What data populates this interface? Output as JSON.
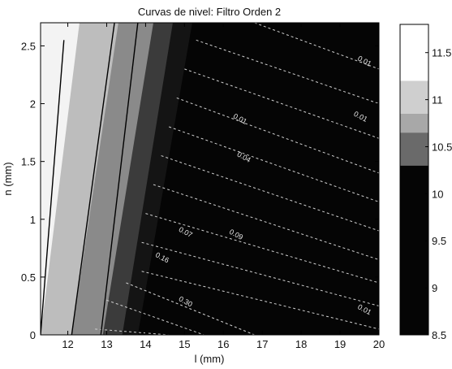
{
  "chart_data": {
    "type": "contour",
    "title": "Curvas de nivel: Filtro Orden 2",
    "xlabel": "l (mm)",
    "ylabel": "n (mm)",
    "xlim": [
      11.3,
      20
    ],
    "ylim": [
      0,
      2.7
    ],
    "x_ticks": [
      12,
      13,
      14,
      15,
      16,
      17,
      18,
      19,
      20
    ],
    "x_tick_labels": [
      "12",
      "13",
      "14",
      "15",
      "16",
      "17",
      "18",
      "19",
      "20"
    ],
    "y_ticks": [
      0,
      0.5,
      1,
      1.5,
      2,
      2.5
    ],
    "y_tick_labels": [
      "0",
      "0.5",
      "1",
      "1.5",
      "2",
      "2.5"
    ],
    "colorbar": {
      "range": [
        8.5,
        11.8
      ],
      "ticks": [
        8.5,
        9,
        9.5,
        10,
        10.5,
        11,
        11.5
      ],
      "tick_labels": [
        "8.5",
        "9",
        "9.5",
        "10",
        "10.5",
        "11",
        "11.5"
      ]
    },
    "bands": [
      {
        "boundary_bottom_x": 11.3,
        "boundary_top_x": 12.3,
        "level": 11.6,
        "color": "#f3f3f3"
      },
      {
        "boundary_bottom_x": 12.1,
        "boundary_top_x": 13.3,
        "level": 11.0,
        "color": "#bdbdbd"
      },
      {
        "boundary_bottom_x": 12.9,
        "boundary_top_x": 14.2,
        "level": 10.5,
        "color": "#8a8a8a"
      },
      {
        "boundary_bottom_x": 13.4,
        "boundary_top_x": 14.7,
        "level": 10.0,
        "color": "#3b3b3b"
      },
      {
        "boundary_bottom_x": 13.8,
        "boundary_top_x": 15.2,
        "level": 9.5,
        "color": "#141414"
      }
    ],
    "solid_contours": [
      {
        "x0": 11.3,
        "y0": 0.0,
        "x1": 11.9,
        "y1": 2.55
      },
      {
        "x0": 12.1,
        "y0": 0.0,
        "x1": 13.2,
        "y1": 2.7
      },
      {
        "x0": 12.85,
        "y0": 0.0,
        "x1": 13.8,
        "y1": 2.7
      }
    ],
    "dashed_contours": [
      {
        "x0": 13.9,
        "y0": 0.55,
        "x1": 20.0,
        "y1": 0.05
      },
      {
        "x0": 13.9,
        "y0": 0.8,
        "x1": 20.0,
        "y1": 0.25
      },
      {
        "x0": 14.0,
        "y0": 1.05,
        "x1": 20.0,
        "y1": 0.45
      },
      {
        "x0": 14.2,
        "y0": 1.3,
        "x1": 20.0,
        "y1": 0.65
      },
      {
        "x0": 14.4,
        "y0": 1.55,
        "x1": 20.0,
        "y1": 0.9
      },
      {
        "x0": 14.6,
        "y0": 1.8,
        "x1": 20.0,
        "y1": 1.15
      },
      {
        "x0": 14.8,
        "y0": 2.05,
        "x1": 20.0,
        "y1": 1.4
      },
      {
        "x0": 15.0,
        "y0": 2.3,
        "x1": 20.0,
        "y1": 1.7
      },
      {
        "x0": 15.3,
        "y0": 2.55,
        "x1": 20.0,
        "y1": 2.0
      },
      {
        "x0": 16.8,
        "y0": 2.7,
        "x1": 20.0,
        "y1": 2.3
      },
      {
        "x0": 12.7,
        "y0": 0.05,
        "x1": 14.6,
        "y1": 0.0
      },
      {
        "x0": 13.0,
        "y0": 0.3,
        "x1": 15.5,
        "y1": 0.0
      },
      {
        "x0": 13.5,
        "y0": 0.45,
        "x1": 16.8,
        "y1": 0.0
      }
    ],
    "contour_labels": [
      {
        "text": "0.01",
        "x": 19.6,
        "y": 2.35
      },
      {
        "text": "0.01",
        "x": 16.4,
        "y": 1.85
      },
      {
        "text": "0.01",
        "x": 19.5,
        "y": 1.87
      },
      {
        "text": "0.04",
        "x": 16.5,
        "y": 1.52
      },
      {
        "text": "0.07",
        "x": 15.0,
        "y": 0.87
      },
      {
        "text": "0.09",
        "x": 16.3,
        "y": 0.85
      },
      {
        "text": "0.16",
        "x": 14.4,
        "y": 0.65
      },
      {
        "text": "0.30",
        "x": 15.0,
        "y": 0.27
      },
      {
        "text": "0.01",
        "x": 19.6,
        "y": 0.2
      }
    ]
  }
}
